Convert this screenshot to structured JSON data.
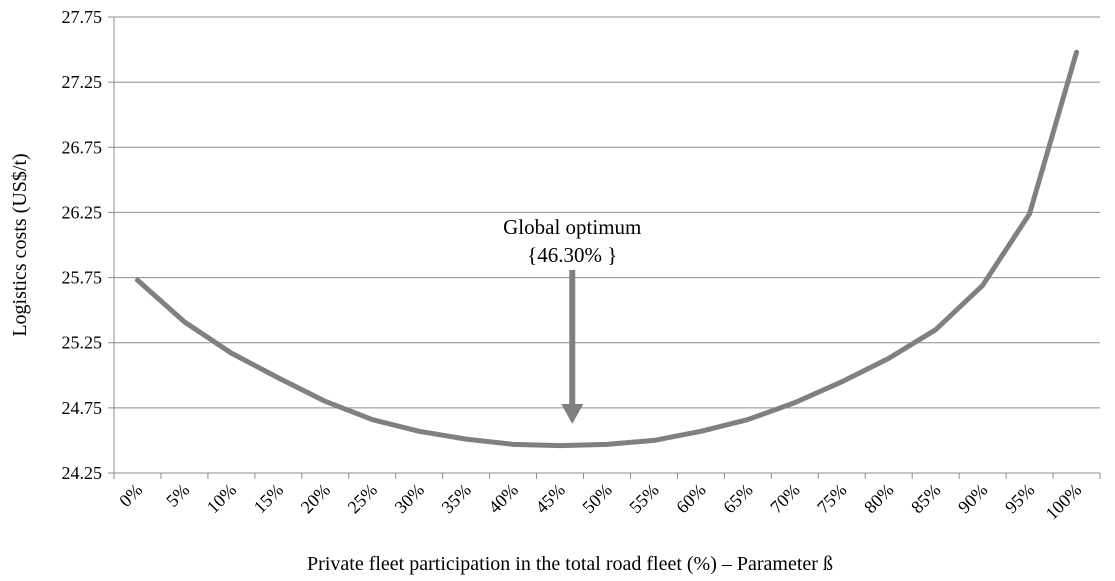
{
  "chart_data": {
    "type": "line",
    "xlabel": "Private fleet participation in the total road fleet (%) – Parameter  ß",
    "ylabel": "Logistics costs (US$/t)",
    "categories": [
      "0%",
      "5%",
      "10%",
      "15%",
      "20%",
      "25%",
      "30%",
      "35%",
      "40%",
      "45%",
      "50%",
      "55%",
      "60%",
      "65%",
      "70%",
      "75%",
      "80%",
      "85%",
      "90%",
      "95%",
      "100%"
    ],
    "values": [
      25.73,
      25.41,
      25.17,
      24.98,
      24.8,
      24.66,
      24.57,
      24.51,
      24.47,
      24.46,
      24.47,
      24.5,
      24.57,
      24.66,
      24.79,
      24.95,
      25.13,
      25.35,
      25.69,
      26.24,
      27.48
    ],
    "ylim": [
      24.25,
      27.75
    ],
    "yticks": [
      24.25,
      24.75,
      25.25,
      25.75,
      26.25,
      26.75,
      27.25,
      27.75
    ],
    "ytick_labels": [
      "24.25",
      "24.75",
      "25.25",
      "25.75",
      "26.25",
      "26.75",
      "27.25",
      "27.75"
    ],
    "grid": true,
    "line_color": "#808080",
    "annotation": {
      "line1": "Global optimum",
      "line2": "{46.30% }",
      "x_value": 46.3
    }
  }
}
